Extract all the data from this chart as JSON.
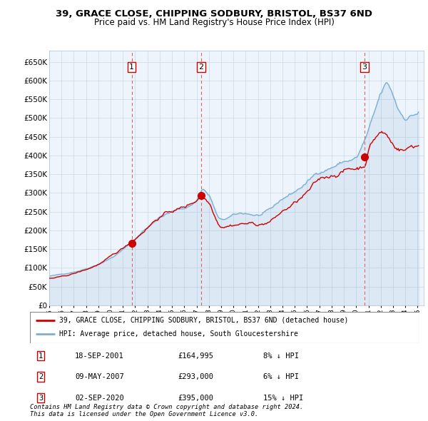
{
  "title": "39, GRACE CLOSE, CHIPPING SODBURY, BRISTOL, BS37 6ND",
  "subtitle": "Price paid vs. HM Land Registry's House Price Index (HPI)",
  "ytick_values": [
    0,
    50000,
    100000,
    150000,
    200000,
    250000,
    300000,
    350000,
    400000,
    450000,
    500000,
    550000,
    600000,
    650000
  ],
  "xlim_start": 1995.0,
  "xlim_end": 2025.5,
  "ylim_min": 0,
  "ylim_max": 680000,
  "hpi_color": "#7bafd4",
  "hpi_fill_color": "#ddeaf5",
  "price_color": "#cc0000",
  "marker_color": "#cc0000",
  "background_color": "#ffffff",
  "chart_bg_color": "#eef4fb",
  "grid_color": "#c8d8e8",
  "dashed_line_color": "#e06060",
  "transactions": [
    {
      "label": "1",
      "date": "18-SEP-2001",
      "price": 164995,
      "year": 2001.72,
      "hpi_diff": "8% ↓ HPI"
    },
    {
      "label": "2",
      "date": "09-MAY-2007",
      "price": 293000,
      "year": 2007.36,
      "hpi_diff": "6% ↓ HPI"
    },
    {
      "label": "3",
      "date": "02-SEP-2020",
      "price": 395000,
      "year": 2020.67,
      "hpi_diff": "15% ↓ HPI"
    }
  ],
  "legend_line1": "39, GRACE CLOSE, CHIPPING SODBURY, BRISTOL, BS37 6ND (detached house)",
  "legend_line2": "HPI: Average price, detached house, South Gloucestershire",
  "footer1": "Contains HM Land Registry data © Crown copyright and database right 2024.",
  "footer2": "This data is licensed under the Open Government Licence v3.0."
}
